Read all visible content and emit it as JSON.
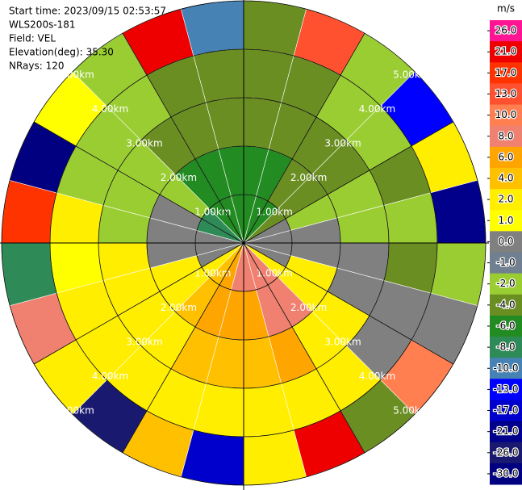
{
  "chart_data": {
    "type": "ppi",
    "annotations": [
      "Start time: 2023/09/15 02:53:57",
      "WLS200s-181",
      "Field: VEL",
      "Elevation(deg): 35.30",
      "NRays: 120"
    ],
    "range_labels": [
      "1.00km",
      "2.00km",
      "3.00km",
      "4.00km",
      "5.00km"
    ],
    "values": [
      [
        -6,
        -6,
        -6,
        -4,
        0,
        0,
        0,
        0,
        3,
        9,
        9,
        9,
        9,
        7,
        5,
        3,
        0,
        0,
        0,
        -8,
        -8,
        -6,
        -6,
        -6
      ],
      [
        -5,
        -5,
        -3,
        -3,
        -1.5,
        0,
        0,
        3,
        3,
        9,
        9,
        7,
        7,
        7,
        5,
        3,
        3,
        0,
        0,
        0,
        -1.5,
        -5,
        -5,
        -5
      ],
      [
        -3,
        -3,
        -3,
        -3,
        -1.5,
        -1.5,
        0,
        0,
        3,
        3,
        7,
        5,
        5,
        5,
        3,
        3,
        3,
        3,
        -1.5,
        -1.5,
        -1.5,
        -3,
        -3,
        -3
      ],
      [
        -3,
        -3,
        -1.5,
        -1.5,
        -3,
        -1.5,
        -3,
        0,
        0,
        3,
        3,
        3,
        3,
        3,
        3,
        3,
        3,
        1.5,
        3,
        -1.5,
        -1.5,
        -1.5,
        -3,
        -3
      ],
      [
        -3,
        15,
        -1.5,
        -11,
        3,
        -19,
        -1.5,
        0,
        12,
        -3,
        25,
        3,
        -15,
        5,
        -23,
        3,
        9,
        -7,
        18,
        -28,
        1.5,
        -1.5,
        22,
        -9
      ]
    ],
    "colorbar": {
      "label": "m/s",
      "ticks": [
        {
          "value": 26,
          "label": "26.0"
        },
        {
          "value": 21,
          "label": "21.0"
        },
        {
          "value": 17,
          "label": "17.0"
        },
        {
          "value": 13,
          "label": "13.0"
        },
        {
          "value": 10,
          "label": "10.0"
        },
        {
          "value": 8,
          "label": "8.0"
        },
        {
          "value": 6,
          "label": "6.0"
        },
        {
          "value": 4,
          "label": "4.0"
        },
        {
          "value": 2,
          "label": "2.0"
        },
        {
          "value": 1,
          "label": "1.0"
        },
        {
          "value": 0,
          "label": "0.0"
        },
        {
          "value": -1,
          "label": "-1.0"
        },
        {
          "value": -2,
          "label": "-2.0"
        },
        {
          "value": -4,
          "label": "-4.0"
        },
        {
          "value": -6,
          "label": "-6.0"
        },
        {
          "value": -8,
          "label": "-8.0"
        },
        {
          "value": -10,
          "label": "-10.0"
        },
        {
          "value": -13,
          "label": "-13.0"
        },
        {
          "value": -17,
          "label": "-17.0"
        },
        {
          "value": -21,
          "label": "-21.0"
        },
        {
          "value": -26,
          "label": "-26.0"
        },
        {
          "value": -30,
          "label": "-30.0"
        }
      ],
      "colors": [
        "#ff1493",
        "#ee0000",
        "#ff3300",
        "#ff5030",
        "#ff7f50",
        "#f08070",
        "#ffa500",
        "#ffc000",
        "#ffee00",
        "#ffff00",
        "#808080",
        "#708090",
        "#9acd32",
        "#6b8e23",
        "#228b22",
        "#2e8b57",
        "#4682b4",
        "#0000ff",
        "#0000cd",
        "#00008b",
        "#191970",
        "#000080"
      ]
    }
  }
}
